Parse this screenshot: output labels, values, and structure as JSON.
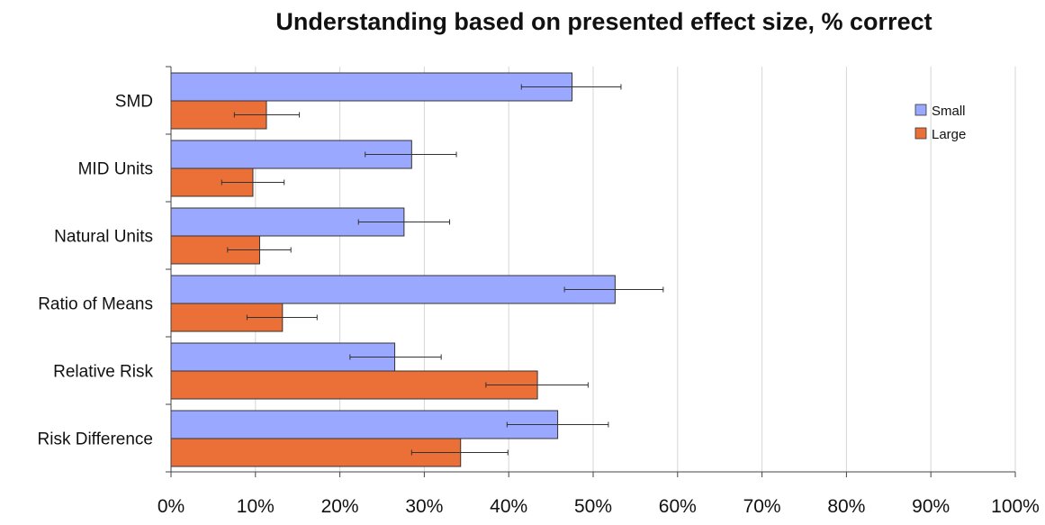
{
  "chart_data": {
    "type": "bar",
    "orientation": "horizontal",
    "title": "Understanding based on presented effect size, % correct",
    "xlabel": "",
    "ylabel": "",
    "xlim": [
      0,
      100
    ],
    "x_ticks": [
      "0%",
      "10%",
      "20%",
      "30%",
      "40%",
      "50%",
      "60%",
      "70%",
      "80%",
      "90%",
      "100%"
    ],
    "categories": [
      "SMD",
      "MID Units",
      "Natural Units",
      "Ratio of Means",
      "Relative Risk",
      "Risk Difference"
    ],
    "series": [
      {
        "name": "Small",
        "color": "#9aa8ff",
        "values": [
          47.5,
          28.5,
          27.6,
          52.6,
          26.5,
          45.8
        ],
        "error_low": [
          41.5,
          23.0,
          22.2,
          46.6,
          21.2,
          39.8
        ],
        "error_high": [
          53.3,
          33.8,
          33.0,
          58.3,
          32.0,
          51.8
        ]
      },
      {
        "name": "Large",
        "color": "#ea7038",
        "values": [
          11.3,
          9.7,
          10.5,
          13.2,
          43.4,
          34.3
        ],
        "error_low": [
          7.5,
          6.0,
          6.7,
          9.0,
          37.3,
          28.5
        ],
        "error_high": [
          15.2,
          13.4,
          14.2,
          17.3,
          49.4,
          39.9
        ]
      }
    ],
    "grid": true,
    "legend": "top-right"
  }
}
